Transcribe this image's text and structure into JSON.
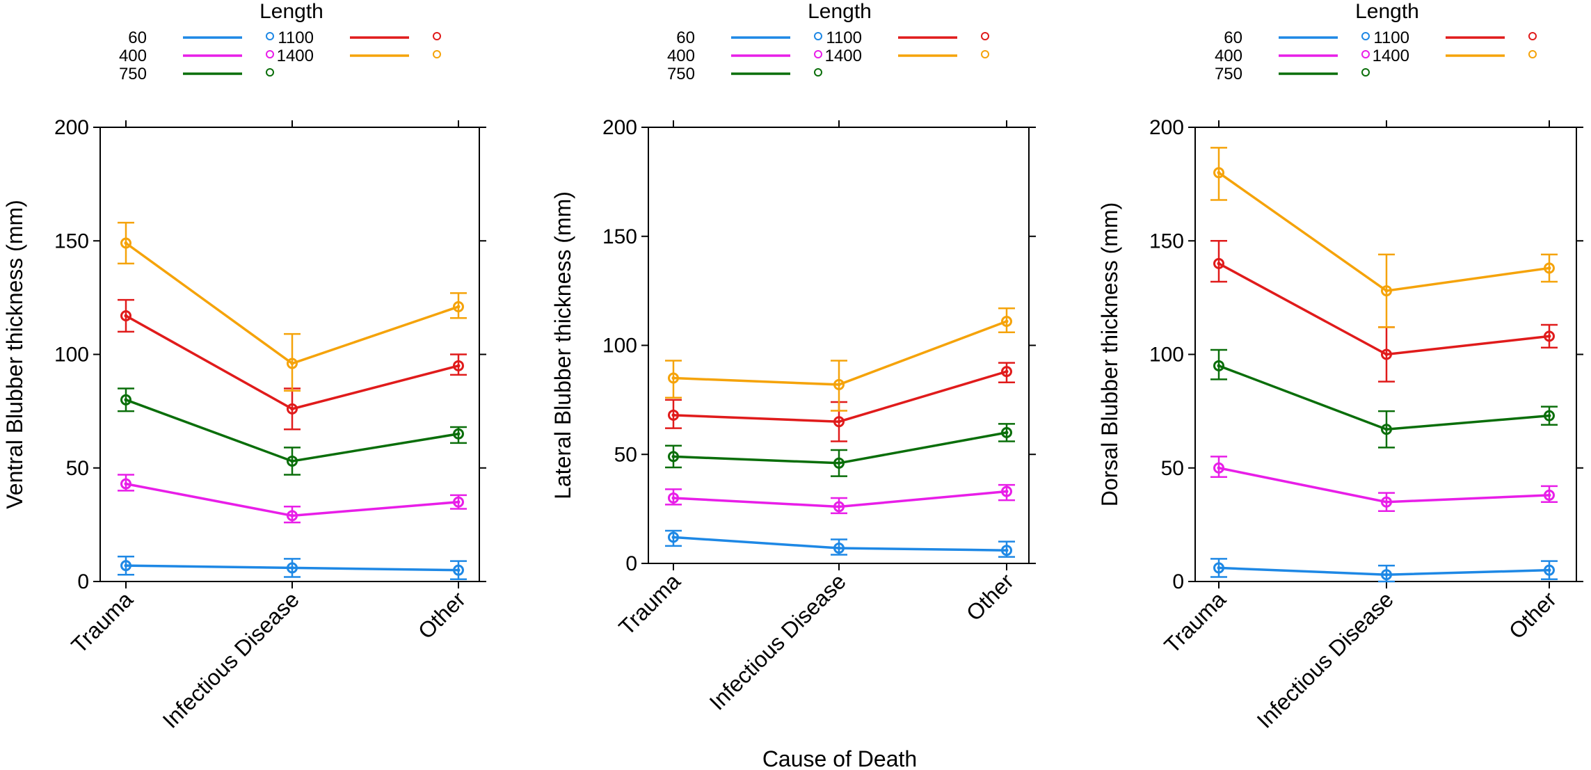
{
  "figure_xlabel": "Cause of Death",
  "chart_data": [
    {
      "type": "line",
      "ylabel": "Ventral Blubber thickness (mm)",
      "categories": [
        "Trauma",
        "Infectious Disease",
        "Other"
      ],
      "yticks": [
        "0",
        "50",
        "100",
        "150",
        "200"
      ],
      "ylim": [
        0,
        200
      ],
      "legend": {
        "title": "Length",
        "position": "top"
      },
      "series": [
        {
          "name": "60",
          "color": "#1e88e5",
          "values": [
            7,
            6,
            5
          ],
          "lower": [
            3,
            2,
            1
          ],
          "upper": [
            11,
            10,
            9
          ]
        },
        {
          "name": "400",
          "color": "#e81ee8",
          "values": [
            43,
            29,
            35
          ],
          "lower": [
            40,
            26,
            32
          ],
          "upper": [
            47,
            33,
            38
          ]
        },
        {
          "name": "750",
          "color": "#0a6e0a",
          "values": [
            80,
            53,
            65
          ],
          "lower": [
            75,
            47,
            61
          ],
          "upper": [
            85,
            59,
            68
          ]
        },
        {
          "name": "1100",
          "color": "#e01b1b",
          "values": [
            117,
            76,
            95
          ],
          "lower": [
            110,
            67,
            91
          ],
          "upper": [
            124,
            85,
            100
          ]
        },
        {
          "name": "1400",
          "color": "#f5a30a",
          "values": [
            149,
            96,
            121
          ],
          "lower": [
            140,
            84,
            116
          ],
          "upper": [
            158,
            109,
            127
          ]
        }
      ]
    },
    {
      "type": "line",
      "ylabel": "Lateral Blubber thickness (mm)",
      "categories": [
        "Trauma",
        "Infectious Disease",
        "Other"
      ],
      "yticks": [
        "0",
        "50",
        "100",
        "150",
        "200"
      ],
      "ylim": [
        0,
        200
      ],
      "legend": {
        "title": "Length",
        "position": "top"
      },
      "series": [
        {
          "name": "60",
          "color": "#1e88e5",
          "values": [
            12,
            7,
            6
          ],
          "lower": [
            8,
            4,
            3
          ],
          "upper": [
            15,
            11,
            10
          ]
        },
        {
          "name": "400",
          "color": "#e81ee8",
          "values": [
            30,
            26,
            33
          ],
          "lower": [
            27,
            23,
            29
          ],
          "upper": [
            34,
            30,
            36
          ]
        },
        {
          "name": "750",
          "color": "#0a6e0a",
          "values": [
            49,
            46,
            60
          ],
          "lower": [
            44,
            40,
            56
          ],
          "upper": [
            54,
            52,
            64
          ]
        },
        {
          "name": "1100",
          "color": "#e01b1b",
          "values": [
            68,
            65,
            88
          ],
          "lower": [
            62,
            56,
            83
          ],
          "upper": [
            75,
            74,
            92
          ]
        },
        {
          "name": "1400",
          "color": "#f5a30a",
          "values": [
            85,
            82,
            111
          ],
          "lower": [
            76,
            70,
            106
          ],
          "upper": [
            93,
            93,
            117
          ]
        }
      ]
    },
    {
      "type": "line",
      "ylabel": "Dorsal Blubber thickness (mm)",
      "categories": [
        "Trauma",
        "Infectious Disease",
        "Other"
      ],
      "yticks": [
        "0",
        "50",
        "100",
        "150",
        "200"
      ],
      "ylim": [
        0,
        200
      ],
      "legend": {
        "title": "Length",
        "position": "top"
      },
      "series": [
        {
          "name": "60",
          "color": "#1e88e5",
          "values": [
            6,
            3,
            5
          ],
          "lower": [
            2,
            0,
            1
          ],
          "upper": [
            10,
            7,
            9
          ]
        },
        {
          "name": "400",
          "color": "#e81ee8",
          "values": [
            50,
            35,
            38
          ],
          "lower": [
            46,
            31,
            35
          ],
          "upper": [
            55,
            39,
            42
          ]
        },
        {
          "name": "750",
          "color": "#0a6e0a",
          "values": [
            95,
            67,
            73
          ],
          "lower": [
            89,
            59,
            69
          ],
          "upper": [
            102,
            75,
            77
          ]
        },
        {
          "name": "1100",
          "color": "#e01b1b",
          "values": [
            140,
            100,
            108
          ],
          "lower": [
            132,
            88,
            103
          ],
          "upper": [
            150,
            112,
            113
          ]
        },
        {
          "name": "1400",
          "color": "#f5a30a",
          "values": [
            180,
            128,
            138
          ],
          "lower": [
            168,
            112,
            132
          ],
          "upper": [
            191,
            144,
            144
          ]
        }
      ]
    }
  ]
}
